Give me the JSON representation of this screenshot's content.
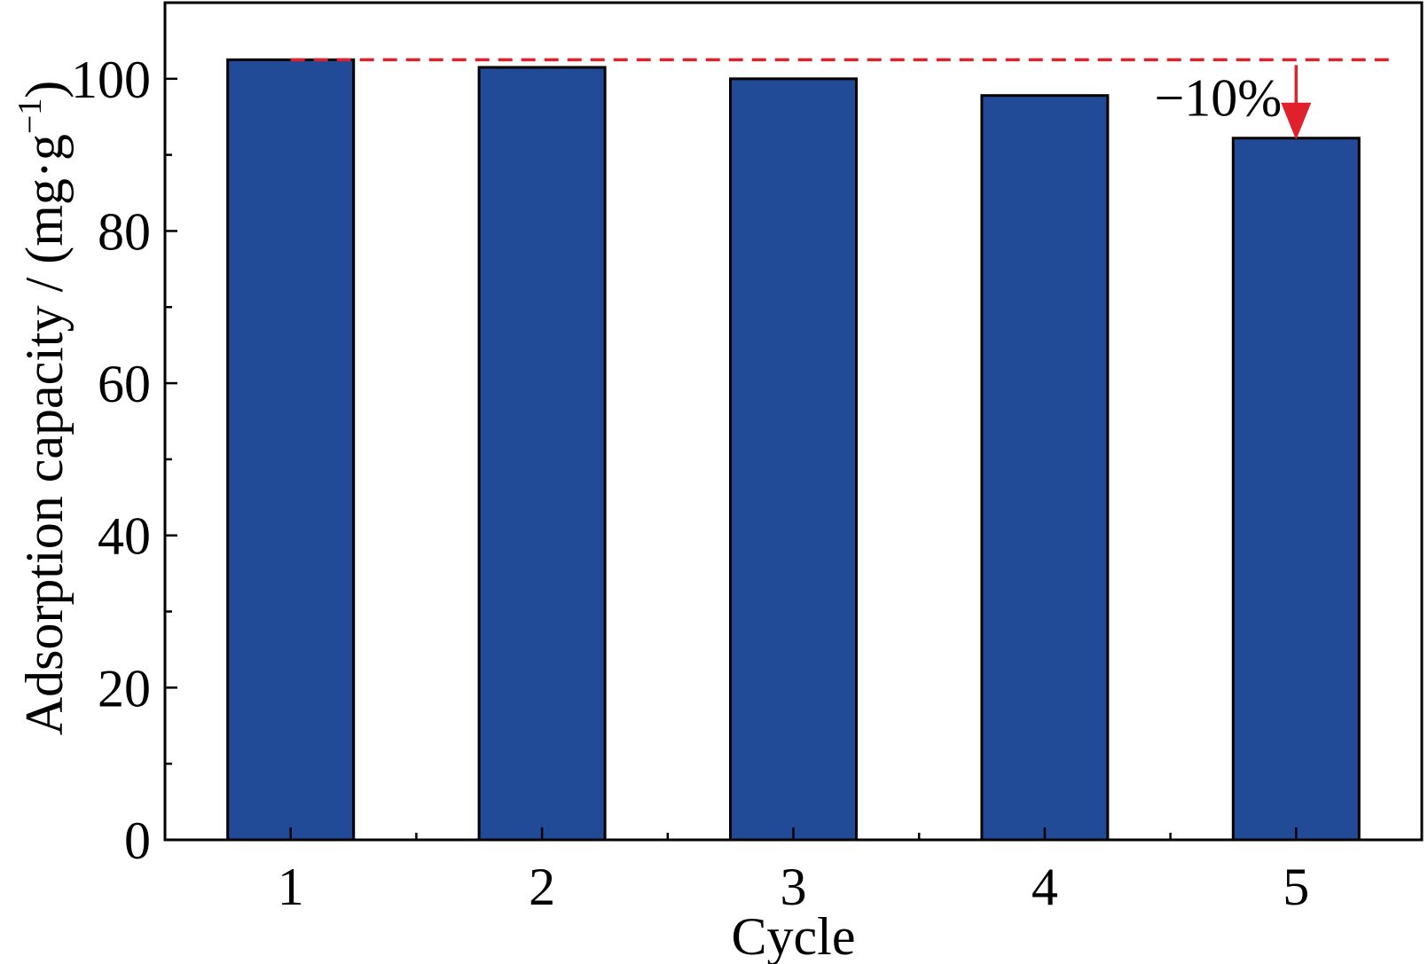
{
  "chart_data": {
    "type": "bar",
    "categories": [
      "1",
      "2",
      "3",
      "4",
      "5"
    ],
    "values": [
      102.5,
      101.5,
      100,
      97.8,
      92.2
    ],
    "xlabel": "Cycle",
    "ylabel": "Adsorption capacity / (mg·g",
    "ylabel_sup": "−1",
    "ylabel_close": ")",
    "ylim": [
      0,
      110
    ],
    "yticks": [
      0,
      20,
      40,
      60,
      80,
      100
    ],
    "grid": false,
    "bar_color": "#214b96",
    "reference_line": {
      "value": 102.5,
      "color": "#e0202a",
      "style": "dashed"
    },
    "annotation": {
      "text": "−10%",
      "category": "5",
      "color": "#e0202a"
    }
  }
}
